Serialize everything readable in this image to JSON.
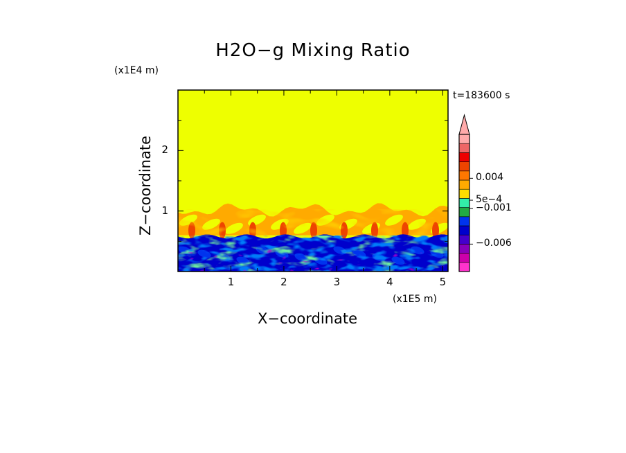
{
  "chart_data": {
    "type": "heatmap",
    "title": "H2O−g Mixing Ratio",
    "xlabel": "X−coordinate",
    "ylabel": "Z−coordinate",
    "x_unit": "(x1E5 m)",
    "y_unit": "(x1E4 m)",
    "time_label": "t=183600 s",
    "xlim": [
      0,
      5.1
    ],
    "ylim": [
      0,
      3.0
    ],
    "x_ticks": [
      {
        "value": 1,
        "label": "1"
      },
      {
        "value": 2,
        "label": "2"
      },
      {
        "value": 3,
        "label": "3"
      },
      {
        "value": 4,
        "label": "4"
      },
      {
        "value": 5,
        "label": "5"
      }
    ],
    "y_ticks": [
      {
        "value": 1,
        "label": "1"
      },
      {
        "value": 2,
        "label": "2"
      }
    ],
    "background_level_color": "#eeff00",
    "colorbar": {
      "levels_colors": [
        "#ff33cc",
        "#cc00aa",
        "#8800bb",
        "#4400cc",
        "#0000cc",
        "#0033ee",
        "#22aa44",
        "#33eeaa",
        "#ffdd00",
        "#ffaa00",
        "#ff7700",
        "#ee4400",
        "#ee0000",
        "#ee6666",
        "#ffaaaa"
      ],
      "labeled_ticks": [
        {
          "label": "−0.006",
          "position": 0.2
        },
        {
          "label": "−0.001",
          "position": 0.46
        },
        {
          "label": "5e−4",
          "position": 0.52
        },
        {
          "label": "0.004",
          "position": 0.68
        }
      ]
    }
  }
}
